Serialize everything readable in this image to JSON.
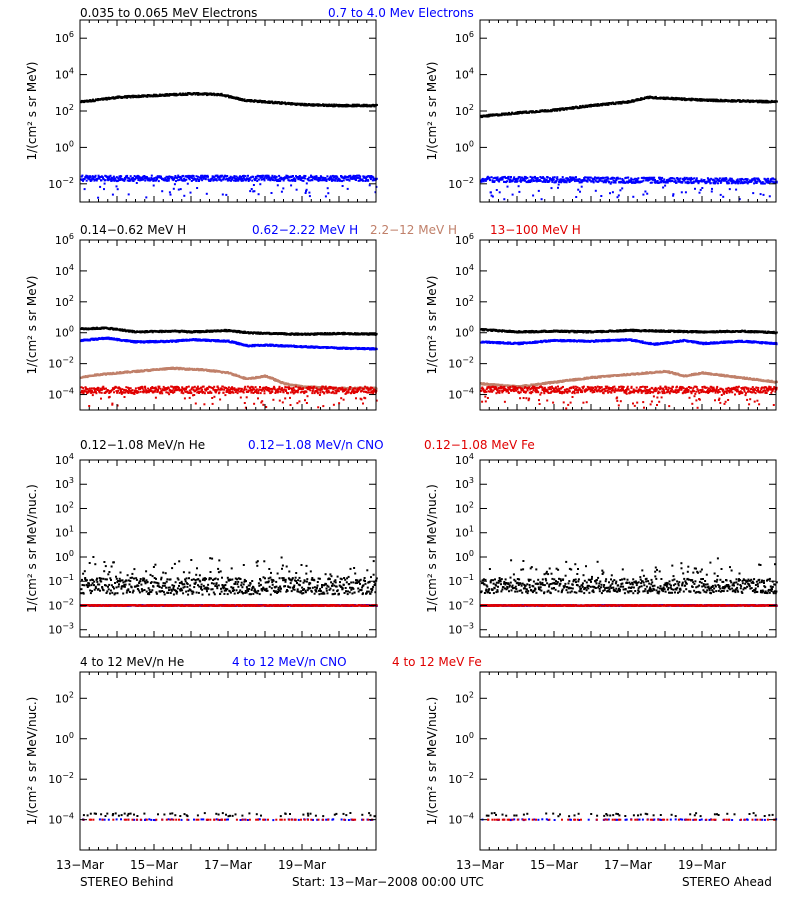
{
  "panel_rows": [
    {
      "legend": [
        {
          "text": "0.035 to 0.065 MeV Electrons",
          "color": "#000000"
        },
        {
          "text": "0.7 to 4.0 Mev Electrons",
          "color": "#0000ff"
        }
      ],
      "ylabel": "1/(cm² s sr MeV)"
    },
    {
      "legend": [
        {
          "text": "0.14−0.62 MeV H",
          "color": "#000000"
        },
        {
          "text": "0.62−2.22 MeV H",
          "color": "#0000ff"
        },
        {
          "text": "2.2−12 MeV H",
          "color": "#c0806a"
        },
        {
          "text": "13−100 MeV H",
          "color": "#e00000"
        }
      ],
      "ylabel": "1/(cm² s sr MeV)"
    },
    {
      "legend": [
        {
          "text": "0.12−1.08 MeV/n He",
          "color": "#000000"
        },
        {
          "text": "0.12−1.08 MeV/n CNO",
          "color": "#0000ff"
        },
        {
          "text": "0.12−1.08 MeV Fe",
          "color": "#e00000"
        }
      ],
      "ylabel": "1/(cm² s sr MeV/nuc.)"
    },
    {
      "legend": [
        {
          "text": "4 to 12 MeV/n He",
          "color": "#000000"
        },
        {
          "text": "4 to 12 MeV/n CNO",
          "color": "#0000ff"
        },
        {
          "text": "4 to 12 MeV Fe",
          "color": "#e00000"
        }
      ],
      "ylabel": "1/(cm² s sr MeV/nuc.)"
    }
  ],
  "footer": {
    "left": "STEREO Behind",
    "center": "Start: 13−Mar−2008 00:00 UTC",
    "right": "STEREO Ahead"
  },
  "x_tick_labels": [
    "13−Mar",
    "15−Mar",
    "17−Mar",
    "19−Mar"
  ],
  "chart_data": [
    {
      "type": "scatter",
      "spacecraft": "STEREO Behind",
      "row": 0,
      "log_y": true,
      "x_days": [
        0,
        8
      ],
      "ylim_exp": [
        -3,
        7
      ],
      "y_tick_exps": [
        -2,
        0,
        2,
        4,
        6
      ],
      "series": [
        {
          "name": "0.035 to 0.065 MeV Electrons",
          "color": "#000000",
          "x": [
            0,
            1,
            2,
            3,
            3.8,
            4.4,
            5,
            6,
            7,
            8
          ],
          "y_log10": [
            2.5,
            2.75,
            2.85,
            2.95,
            2.9,
            2.6,
            2.5,
            2.35,
            2.3,
            2.3
          ]
        },
        {
          "name": "0.7 to 4.0 Mev Electrons",
          "color": "#0000ff",
          "x": [
            0,
            8
          ],
          "y_log10": [
            -1.7,
            -1.7
          ],
          "scatter": 0.15,
          "outliers_down": true
        }
      ]
    },
    {
      "type": "scatter",
      "spacecraft": "STEREO Ahead",
      "row": 0,
      "log_y": true,
      "x_days": [
        0,
        8
      ],
      "ylim_exp": [
        -3,
        7
      ],
      "y_tick_exps": [
        -2,
        0,
        2,
        4,
        6
      ],
      "series": [
        {
          "name": "0.035 to 0.065 MeV Electrons",
          "color": "#000000",
          "x": [
            0,
            1,
            2,
            3,
            4,
            4.5,
            5,
            6,
            7,
            8
          ],
          "y_log10": [
            1.7,
            1.9,
            2.05,
            2.3,
            2.5,
            2.75,
            2.7,
            2.6,
            2.55,
            2.5
          ]
        },
        {
          "name": "0.7 to 4.0 Mev Electrons",
          "color": "#0000ff",
          "x": [
            0,
            8
          ],
          "y_log10": [
            -1.75,
            -1.85
          ],
          "scatter": 0.15,
          "outliers_down": true
        }
      ]
    },
    {
      "type": "scatter",
      "spacecraft": "STEREO Behind",
      "row": 1,
      "log_y": true,
      "x_days": [
        0,
        8
      ],
      "ylim_exp": [
        -5,
        6
      ],
      "y_tick_exps": [
        -4,
        -2,
        0,
        2,
        4,
        6
      ],
      "series": [
        {
          "name": "0.14−0.62 MeV H",
          "color": "#000000",
          "x": [
            0,
            0.7,
            1.5,
            2.5,
            3,
            4,
            4.5,
            5,
            6,
            7,
            8
          ],
          "y_log10": [
            0.25,
            0.3,
            0.05,
            0.1,
            0.05,
            0.15,
            0.0,
            -0.05,
            -0.1,
            -0.05,
            -0.1
          ]
        },
        {
          "name": "0.62−2.22 MeV H",
          "color": "#0000ff",
          "x": [
            0,
            0.7,
            1.5,
            2.5,
            3,
            4,
            4.5,
            5,
            6,
            7,
            8
          ],
          "y_log10": [
            -0.5,
            -0.35,
            -0.6,
            -0.55,
            -0.45,
            -0.55,
            -0.85,
            -0.8,
            -0.9,
            -1.0,
            -1.05
          ]
        },
        {
          "name": "2.2−12 MeV H",
          "color": "#c0806a",
          "x": [
            0,
            0.5,
            1.5,
            2.5,
            3.3,
            4,
            4.5,
            5,
            5.5,
            6,
            7,
            8
          ],
          "y_log10": [
            -2.9,
            -2.7,
            -2.5,
            -2.3,
            -2.4,
            -2.6,
            -3.0,
            -2.8,
            -3.3,
            -3.5,
            -3.6,
            -3.6
          ]
        },
        {
          "name": "13−100 MeV H",
          "color": "#e00000",
          "x": [
            0,
            8
          ],
          "y_log10": [
            -3.7,
            -3.7
          ],
          "scatter": 0.22,
          "outliers_down": true
        }
      ]
    },
    {
      "type": "scatter",
      "spacecraft": "STEREO Ahead",
      "row": 1,
      "log_y": true,
      "x_days": [
        0,
        8
      ],
      "ylim_exp": [
        -5,
        6
      ],
      "y_tick_exps": [
        -4,
        -2,
        0,
        2,
        4,
        6
      ],
      "series": [
        {
          "name": "0.14−0.62 MeV H",
          "color": "#000000",
          "x": [
            0,
            1,
            2,
            3,
            4,
            5,
            6,
            7,
            8
          ],
          "y_log10": [
            0.2,
            0.05,
            0.1,
            0.05,
            0.15,
            0.1,
            0.05,
            0.1,
            0.0
          ]
        },
        {
          "name": "0.62−2.22 MeV H",
          "color": "#0000ff",
          "x": [
            0,
            1,
            2,
            3,
            4,
            4.7,
            5.5,
            6,
            7,
            8
          ],
          "y_log10": [
            -0.6,
            -0.7,
            -0.5,
            -0.55,
            -0.45,
            -0.75,
            -0.5,
            -0.7,
            -0.55,
            -0.7
          ]
        },
        {
          "name": "2.2−12 MeV H",
          "color": "#c0806a",
          "x": [
            0,
            1,
            2,
            3,
            4,
            5,
            5.5,
            6,
            7,
            8
          ],
          "y_log10": [
            -3.3,
            -3.5,
            -3.2,
            -2.9,
            -2.7,
            -2.5,
            -2.8,
            -2.6,
            -2.9,
            -3.2
          ]
        },
        {
          "name": "13−100 MeV H",
          "color": "#e00000",
          "x": [
            0,
            8
          ],
          "y_log10": [
            -3.7,
            -3.7
          ],
          "scatter": 0.22,
          "outliers_down": true
        }
      ]
    },
    {
      "type": "scatter",
      "spacecraft": "STEREO Behind",
      "row": 2,
      "log_y": true,
      "x_days": [
        0,
        8
      ],
      "ylim_exp": [
        -3.3,
        4
      ],
      "y_tick_exps": [
        -3,
        -2,
        -1,
        0,
        1,
        2,
        3,
        4
      ],
      "series": [
        {
          "name": "0.12−1.08 MeV/n He",
          "color": "#000000",
          "x": [
            0,
            8
          ],
          "y_log10": [
            -1.2,
            -1.2
          ],
          "scatter": 0.35,
          "outliers_up": true
        },
        {
          "name": "0.12−1.08 MeV/n CNO",
          "color": "#0000ff",
          "x": [
            0,
            8
          ],
          "y_log10": [
            -2.0,
            -2.0
          ],
          "scatter": 0.02
        },
        {
          "name": "0.12−1.08 MeV Fe",
          "color": "#e00000",
          "x": [
            0,
            8
          ],
          "y_log10": [
            -2.0,
            -2.0
          ],
          "scatter": 0.02
        }
      ]
    },
    {
      "type": "scatter",
      "spacecraft": "STEREO Ahead",
      "row": 2,
      "log_y": true,
      "x_days": [
        0,
        8
      ],
      "ylim_exp": [
        -3.3,
        4
      ],
      "y_tick_exps": [
        -3,
        -2,
        -1,
        0,
        1,
        2,
        3,
        4
      ],
      "series": [
        {
          "name": "0.12−1.08 MeV/n He",
          "color": "#000000",
          "x": [
            0,
            8
          ],
          "y_log10": [
            -1.2,
            -1.2
          ],
          "scatter": 0.3,
          "outliers_up": true
        },
        {
          "name": "0.12−1.08 MeV/n CNO",
          "color": "#0000ff",
          "x": [
            0,
            8
          ],
          "y_log10": [
            -2.0,
            -2.0
          ],
          "scatter": 0.02
        },
        {
          "name": "0.12−1.08 MeV Fe",
          "color": "#e00000",
          "x": [
            0,
            8
          ],
          "y_log10": [
            -2.0,
            -2.0
          ],
          "scatter": 0.02
        }
      ]
    },
    {
      "type": "scatter",
      "spacecraft": "STEREO Behind",
      "row": 3,
      "log_y": true,
      "x_days": [
        0,
        8
      ],
      "ylim_exp": [
        -5.5,
        3.3
      ],
      "y_tick_exps": [
        -4,
        -2,
        0,
        2
      ],
      "series": [
        {
          "name": "4 to 12 MeV/n He",
          "color": "#000000",
          "x": [
            0,
            8
          ],
          "y_log10": [
            -3.75,
            -3.75
          ],
          "scatter": 0.08,
          "sparse": true
        },
        {
          "name": "4 to 12 MeV/n CNO",
          "color": "#0000ff",
          "x": [
            0,
            8
          ],
          "y_log10": [
            -4.0,
            -4.0
          ],
          "scatter": 0.02,
          "sparse": true
        },
        {
          "name": "4 to 12 MeV Fe",
          "color": "#e00000",
          "x": [
            0,
            8
          ],
          "y_log10": [
            -4.0,
            -4.0
          ],
          "scatter": 0.0,
          "sparse": true
        }
      ]
    },
    {
      "type": "scatter",
      "spacecraft": "STEREO Ahead",
      "row": 3,
      "log_y": true,
      "x_days": [
        0,
        8
      ],
      "ylim_exp": [
        -5.5,
        3.3
      ],
      "y_tick_exps": [
        -4,
        -2,
        0,
        2
      ],
      "series": [
        {
          "name": "4 to 12 MeV/n He",
          "color": "#000000",
          "x": [
            0,
            8
          ],
          "y_log10": [
            -3.75,
            -3.75
          ],
          "scatter": 0.08,
          "sparse": true
        },
        {
          "name": "4 to 12 MeV/n CNO",
          "color": "#0000ff",
          "x": [
            0,
            8
          ],
          "y_log10": [
            -4.0,
            -4.0
          ],
          "scatter": 0.02,
          "sparse": true
        },
        {
          "name": "4 to 12 MeV Fe",
          "color": "#e00000",
          "x": [
            0,
            8
          ],
          "y_log10": [
            -4.0,
            -4.0
          ],
          "scatter": 0.0,
          "sparse": true
        }
      ]
    }
  ]
}
